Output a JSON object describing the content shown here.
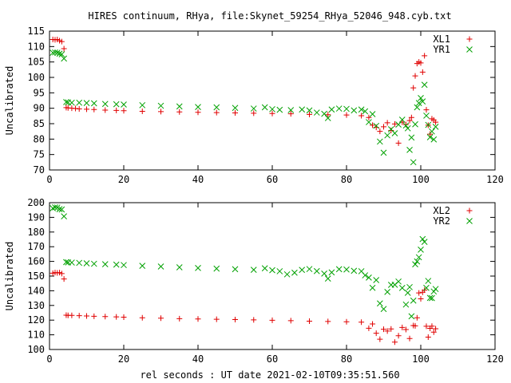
{
  "chart_data": {
    "title": "HIRES continuum, RHya, file:Skynet_59254_RHya_52046_948.cyb.txt",
    "xlabel": "rel seconds : UT date 2021-02-10T09:35:51.560",
    "panels": [
      {
        "type": "scatter",
        "ylabel": "Uncalibrated",
        "xlim": [
          0,
          120
        ],
        "ylim": [
          70,
          115
        ],
        "xticks": [
          0,
          20,
          40,
          60,
          80,
          100,
          120
        ],
        "yticks": [
          70,
          75,
          80,
          85,
          90,
          95,
          100,
          105,
          110,
          115
        ],
        "legend": "top-right",
        "series": [
          {
            "name": "XL1",
            "marker": "plus",
            "color": "#e00000",
            "points": [
              [
                0.9,
                112.3
              ],
              [
                1.5,
                112.2
              ],
              [
                2.1,
                112.3
              ],
              [
                2.7,
                111.9
              ],
              [
                3.3,
                111.6
              ],
              [
                3.9,
                109.3
              ],
              [
                4.5,
                90.2
              ],
              [
                5,
                90.1
              ],
              [
                6,
                90
              ],
              [
                7,
                89.9
              ],
              [
                8,
                89.8
              ],
              [
                10,
                89.7
              ],
              [
                12,
                89.6
              ],
              [
                15,
                89.4
              ],
              [
                18,
                89.3
              ],
              [
                20,
                89.2
              ],
              [
                25,
                89
              ],
              [
                30,
                88.9
              ],
              [
                35,
                88.8
              ],
              [
                40,
                88.7
              ],
              [
                45,
                88.6
              ],
              [
                50,
                88.5
              ],
              [
                55,
                88.4
              ],
              [
                60,
                88.3
              ],
              [
                65,
                88.2
              ],
              [
                70,
                88
              ],
              [
                75,
                87.9
              ],
              [
                80,
                87.8
              ],
              [
                84,
                87.6
              ],
              [
                86,
                87
              ],
              [
                87,
                84.5
              ],
              [
                88,
                83.8
              ],
              [
                89,
                82.5
              ],
              [
                90,
                84
              ],
              [
                91,
                85.3
              ],
              [
                92,
                82.8
              ],
              [
                93,
                84.9
              ],
              [
                94,
                78.7
              ],
              [
                95,
                85.5
              ],
              [
                96,
                84.7
              ],
              [
                97,
                86
              ],
              [
                97.5,
                87
              ],
              [
                98,
                96.6
              ],
              [
                98.5,
                100.5
              ],
              [
                99,
                104.5
              ],
              [
                99.5,
                105
              ],
              [
                100,
                104.7
              ],
              [
                100.5,
                101.7
              ],
              [
                101,
                107
              ],
              [
                101.5,
                89.5
              ],
              [
                102,
                84.5
              ],
              [
                102.5,
                81.6
              ],
              [
                103,
                86.6
              ],
              [
                103.5,
                86.2
              ],
              [
                104,
                85.5
              ]
            ]
          },
          {
            "name": "YR1",
            "marker": "cross",
            "color": "#00a000",
            "points": [
              [
                0.9,
                108
              ],
              [
                1.5,
                108.1
              ],
              [
                2.1,
                108
              ],
              [
                2.7,
                107.7
              ],
              [
                3.3,
                107.5
              ],
              [
                3.9,
                106.1
              ],
              [
                4.5,
                92
              ],
              [
                5,
                91.9
              ],
              [
                6,
                91.8
              ],
              [
                8,
                91.8
              ],
              [
                10,
                91.7
              ],
              [
                12,
                91.6
              ],
              [
                15,
                91.4
              ],
              [
                18,
                91.3
              ],
              [
                20,
                91.2
              ],
              [
                25,
                91
              ],
              [
                30,
                90.8
              ],
              [
                35,
                90.6
              ],
              [
                40,
                90.4
              ],
              [
                45,
                90.3
              ],
              [
                50,
                90.1
              ],
              [
                55,
                89.9
              ],
              [
                58,
                90.3
              ],
              [
                60,
                89.7
              ],
              [
                62,
                89.5
              ],
              [
                65,
                89.4
              ],
              [
                68,
                89.6
              ],
              [
                70,
                89.3
              ],
              [
                72,
                88.6
              ],
              [
                74,
                88.2
              ],
              [
                75,
                86.8
              ],
              [
                76,
                89.6
              ],
              [
                78,
                89.9
              ],
              [
                80,
                89.8
              ],
              [
                82,
                89.3
              ],
              [
                84,
                89.6
              ],
              [
                85,
                89
              ],
              [
                86,
                85.5
              ],
              [
                87,
                88.1
              ],
              [
                88,
                84.3
              ],
              [
                89,
                79.2
              ],
              [
                90,
                75.6
              ],
              [
                91,
                81.2
              ],
              [
                92,
                83.2
              ],
              [
                93,
                81.9
              ],
              [
                94,
                84.7
              ],
              [
                95,
                86.3
              ],
              [
                96,
                84.4
              ],
              [
                96.5,
                83.5
              ],
              [
                97,
                76.5
              ],
              [
                97.5,
                80.5
              ],
              [
                98,
                72.5
              ],
              [
                98.5,
                84.8
              ],
              [
                99,
                90.3
              ],
              [
                99.5,
                91.7
              ],
              [
                100,
                93.3
              ],
              [
                100.5,
                92.2
              ],
              [
                101,
                97.6
              ],
              [
                101.5,
                87.6
              ],
              [
                102,
                84.6
              ],
              [
                102.5,
                80.6
              ],
              [
                103,
                82.5
              ],
              [
                103.5,
                79.9
              ],
              [
                104,
                84
              ]
            ]
          }
        ]
      },
      {
        "type": "scatter",
        "ylabel": "Uncalibrated",
        "xlim": [
          0,
          120
        ],
        "ylim": [
          100,
          200
        ],
        "xticks": [
          0,
          20,
          40,
          60,
          80,
          100,
          120
        ],
        "yticks": [
          100,
          110,
          120,
          130,
          140,
          150,
          160,
          170,
          180,
          190,
          200
        ],
        "legend": "top-right",
        "series": [
          {
            "name": "XL2",
            "marker": "plus",
            "color": "#e00000",
            "points": [
              [
                0.9,
                152
              ],
              [
                1.5,
                152.4
              ],
              [
                2.1,
                152.2
              ],
              [
                2.7,
                152.4
              ],
              [
                3.3,
                151.7
              ],
              [
                3.9,
                148
              ],
              [
                4.5,
                123.4
              ],
              [
                5,
                123.2
              ],
              [
                6,
                123.2
              ],
              [
                8,
                123
              ],
              [
                10,
                122.8
              ],
              [
                12,
                122.6
              ],
              [
                15,
                122.4
              ],
              [
                18,
                122.2
              ],
              [
                20,
                122
              ],
              [
                25,
                121.6
              ],
              [
                30,
                121.3
              ],
              [
                35,
                121
              ],
              [
                40,
                120.8
              ],
              [
                45,
                120.6
              ],
              [
                50,
                120.4
              ],
              [
                55,
                120.2
              ],
              [
                60,
                119.9
              ],
              [
                65,
                119.6
              ],
              [
                70,
                119.3
              ],
              [
                75,
                119.1
              ],
              [
                80,
                118.9
              ],
              [
                84,
                118.6
              ],
              [
                86,
                114.5
              ],
              [
                87,
                117.4
              ],
              [
                88,
                111.1
              ],
              [
                89,
                107
              ],
              [
                90,
                113.8
              ],
              [
                91,
                112.6
              ],
              [
                92,
                114
              ],
              [
                93,
                105
              ],
              [
                94,
                109.4
              ],
              [
                95,
                115
              ],
              [
                96,
                113.6
              ],
              [
                97,
                107.5
              ],
              [
                98,
                116.3
              ],
              [
                98.5,
                116.1
              ],
              [
                99,
                121.6
              ],
              [
                99.5,
                138.5
              ],
              [
                100,
                134.5
              ],
              [
                100.5,
                139
              ],
              [
                101,
                140.4
              ],
              [
                101.5,
                115.8
              ],
              [
                102,
                108.4
              ],
              [
                102.5,
                114.4
              ],
              [
                103,
                115.9
              ],
              [
                103.5,
                111.8
              ],
              [
                104,
                114.1
              ]
            ]
          },
          {
            "name": "YR2",
            "marker": "cross",
            "color": "#00a000",
            "points": [
              [
                0.9,
                196.2
              ],
              [
                1.5,
                196.8
              ],
              [
                2.1,
                196.7
              ],
              [
                2.7,
                195.6
              ],
              [
                3.3,
                195.4
              ],
              [
                3.9,
                190.7
              ],
              [
                4.5,
                159.5
              ],
              [
                5,
                159.3
              ],
              [
                6,
                159.2
              ],
              [
                8,
                159
              ],
              [
                10,
                158.7
              ],
              [
                12,
                158.4
              ],
              [
                15,
                158.1
              ],
              [
                18,
                157.8
              ],
              [
                20,
                157.5
              ],
              [
                25,
                157
              ],
              [
                30,
                156.5
              ],
              [
                35,
                156
              ],
              [
                40,
                155.5
              ],
              [
                45,
                155.1
              ],
              [
                50,
                154.7
              ],
              [
                55,
                154.3
              ],
              [
                58,
                155.3
              ],
              [
                60,
                154
              ],
              [
                62,
                153.3
              ],
              [
                64,
                151.2
              ],
              [
                66,
                152.3
              ],
              [
                68,
                154.2
              ],
              [
                70,
                154.8
              ],
              [
                72,
                153.4
              ],
              [
                74,
                151.7
              ],
              [
                75,
                148.3
              ],
              [
                76,
                152.5
              ],
              [
                78,
                154.7
              ],
              [
                80,
                154.5
              ],
              [
                82,
                153.6
              ],
              [
                84,
                153.3
              ],
              [
                85,
                150.5
              ],
              [
                86,
                149
              ],
              [
                87,
                142
              ],
              [
                88,
                147.3
              ],
              [
                89,
                131.4
              ],
              [
                90,
                127.6
              ],
              [
                91,
                139.2
              ],
              [
                92,
                144
              ],
              [
                93,
                144.1
              ],
              [
                94,
                146.3
              ],
              [
                95,
                141.9
              ],
              [
                96,
                130.6
              ],
              [
                96.5,
                138.6
              ],
              [
                97,
                142.5
              ],
              [
                97.5,
                122.6
              ],
              [
                98,
                133.3
              ],
              [
                98.5,
                158
              ],
              [
                99,
                160
              ],
              [
                99.5,
                162.8
              ],
              [
                100,
                168
              ],
              [
                100.5,
                175.2
              ],
              [
                101,
                173.3
              ],
              [
                101.5,
                142
              ],
              [
                102,
                146.7
              ],
              [
                102.5,
                135.1
              ],
              [
                103,
                135
              ],
              [
                103.5,
                139.5
              ],
              [
                104,
                141.2
              ]
            ]
          }
        ]
      }
    ]
  }
}
